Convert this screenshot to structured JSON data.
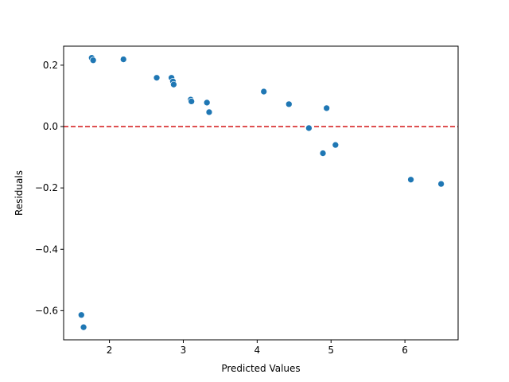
{
  "chart_data": {
    "type": "scatter",
    "title": "",
    "xlabel": "Predicted Values",
    "ylabel": "Residuals",
    "xlim": [
      1.38,
      6.72
    ],
    "ylim": [
      -0.695,
      0.262
    ],
    "x_ticks": [
      2,
      3,
      4,
      5,
      6
    ],
    "x_tick_labels": [
      "2",
      "3",
      "4",
      "5",
      "6"
    ],
    "y_ticks": [
      -0.6,
      -0.4,
      -0.2,
      0.0,
      0.2
    ],
    "y_tick_labels": [
      "−0.6",
      "−0.4",
      "−0.2",
      "0.0",
      "0.2"
    ],
    "grid": false,
    "legend": "none",
    "point_color": "#1f77b4",
    "reference_line": {
      "y": 0.0,
      "color": "#d62728",
      "style": "dashed"
    },
    "points": [
      {
        "x": 1.62,
        "y": -0.614
      },
      {
        "x": 1.65,
        "y": -0.654
      },
      {
        "x": 1.76,
        "y": 0.224
      },
      {
        "x": 1.78,
        "y": 0.216
      },
      {
        "x": 2.19,
        "y": 0.219
      },
      {
        "x": 2.64,
        "y": 0.159
      },
      {
        "x": 2.84,
        "y": 0.159
      },
      {
        "x": 2.86,
        "y": 0.147
      },
      {
        "x": 2.87,
        "y": 0.137
      },
      {
        "x": 3.1,
        "y": 0.088
      },
      {
        "x": 3.11,
        "y": 0.082
      },
      {
        "x": 3.32,
        "y": 0.078
      },
      {
        "x": 3.35,
        "y": 0.047
      },
      {
        "x": 4.09,
        "y": 0.114
      },
      {
        "x": 4.43,
        "y": 0.073
      },
      {
        "x": 4.7,
        "y": -0.005
      },
      {
        "x": 4.89,
        "y": -0.087
      },
      {
        "x": 4.94,
        "y": 0.06
      },
      {
        "x": 5.06,
        "y": -0.06
      },
      {
        "x": 6.08,
        "y": -0.173
      },
      {
        "x": 6.49,
        "y": -0.187
      }
    ]
  }
}
